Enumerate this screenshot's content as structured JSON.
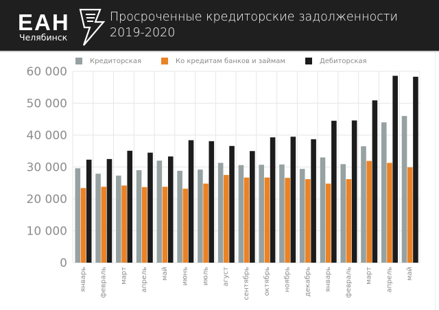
{
  "header": {
    "logo_text": "ЕАН",
    "logo_subtitle": "Челябинск",
    "logo_icon": "lightning-bolt-icon",
    "title_line1": "Просроченные кредиторские задолженности",
    "title_line2": "2019-2020"
  },
  "colors": {
    "header_bg": "#1f1f1f",
    "series_creditor": "#96a1a2",
    "series_loans": "#ea8226",
    "series_debtor": "#1c1c1c",
    "grid": "#e6e6e6"
  },
  "chart_data": {
    "type": "bar",
    "title": "Просроченные кредиторские задолженности 2019-2020",
    "xlabel": "",
    "ylabel": "",
    "ylim": [
      0,
      60000
    ],
    "yticks": [
      0,
      10000,
      20000,
      30000,
      40000,
      50000,
      60000
    ],
    "ytick_labels": [
      "0",
      "10 000",
      "20 000",
      "30 000",
      "40 000",
      "50 000",
      "60 000"
    ],
    "grid": true,
    "legend_position": "top",
    "categories": [
      "январь",
      "февраль",
      "март",
      "апрель",
      "май",
      "июнь",
      "июль",
      "агуст",
      "сентябрь",
      "октябрь",
      "ноябрь",
      "декабрь",
      "январь",
      "февраль",
      "март",
      "апрель",
      "май"
    ],
    "series": [
      {
        "name": "Кредиторская",
        "color": "#96a1a2",
        "values": [
          29600,
          27900,
          27300,
          29000,
          32000,
          28800,
          29200,
          31300,
          30600,
          30700,
          30800,
          29400,
          33000,
          30900,
          36500,
          44000,
          46000
        ]
      },
      {
        "name": "Ко кредитам банков и займам",
        "color": "#ea8226",
        "values": [
          23400,
          23800,
          24200,
          23700,
          23800,
          23200,
          24800,
          27500,
          26700,
          26700,
          26600,
          26200,
          24800,
          26200,
          31900,
          31300,
          29900
        ]
      },
      {
        "name": "Дебиторская",
        "color": "#1c1c1c",
        "values": [
          32300,
          32500,
          35100,
          34500,
          33300,
          38400,
          38100,
          36600,
          35000,
          39300,
          39500,
          38700,
          44500,
          44600,
          50900,
          58600,
          58300
        ]
      }
    ]
  }
}
